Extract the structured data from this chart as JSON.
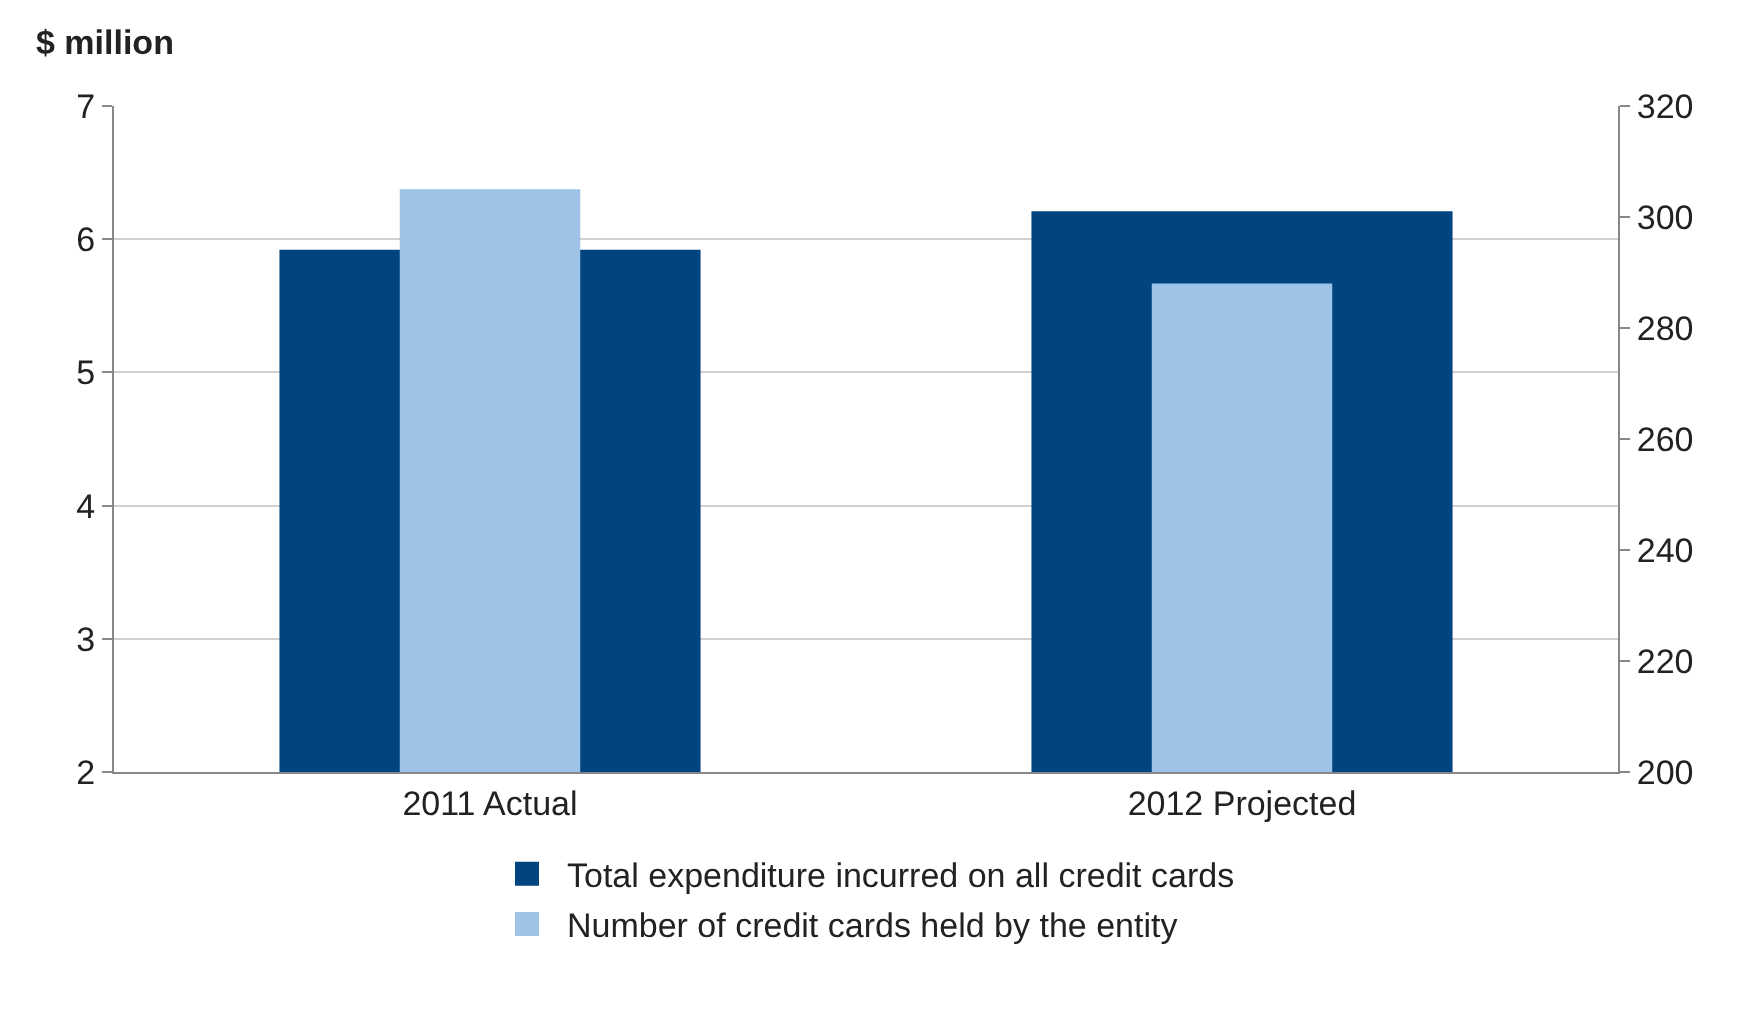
{
  "chart_data": {
    "type": "bar",
    "ylabel": "$ million",
    "categories": [
      "2011 Actual",
      "2012 Projected"
    ],
    "series": [
      {
        "name": "Total expenditure incurred on all credit cards",
        "color": "#004480",
        "values": [
          5.92,
          6.21
        ]
      },
      {
        "name": "Number of credit cards held by the entity",
        "color": "#9dc3e6",
        "values": [
          305,
          288
        ],
        "axis": "y2"
      }
    ],
    "ylim": [
      2,
      7
    ],
    "yticks": [
      2,
      3,
      4,
      5,
      6,
      7
    ],
    "y2lim": [
      200,
      320
    ],
    "y2ticks": [
      200,
      220,
      240,
      260,
      280,
      300,
      320
    ],
    "grid": "y",
    "legend": "bottom"
  }
}
